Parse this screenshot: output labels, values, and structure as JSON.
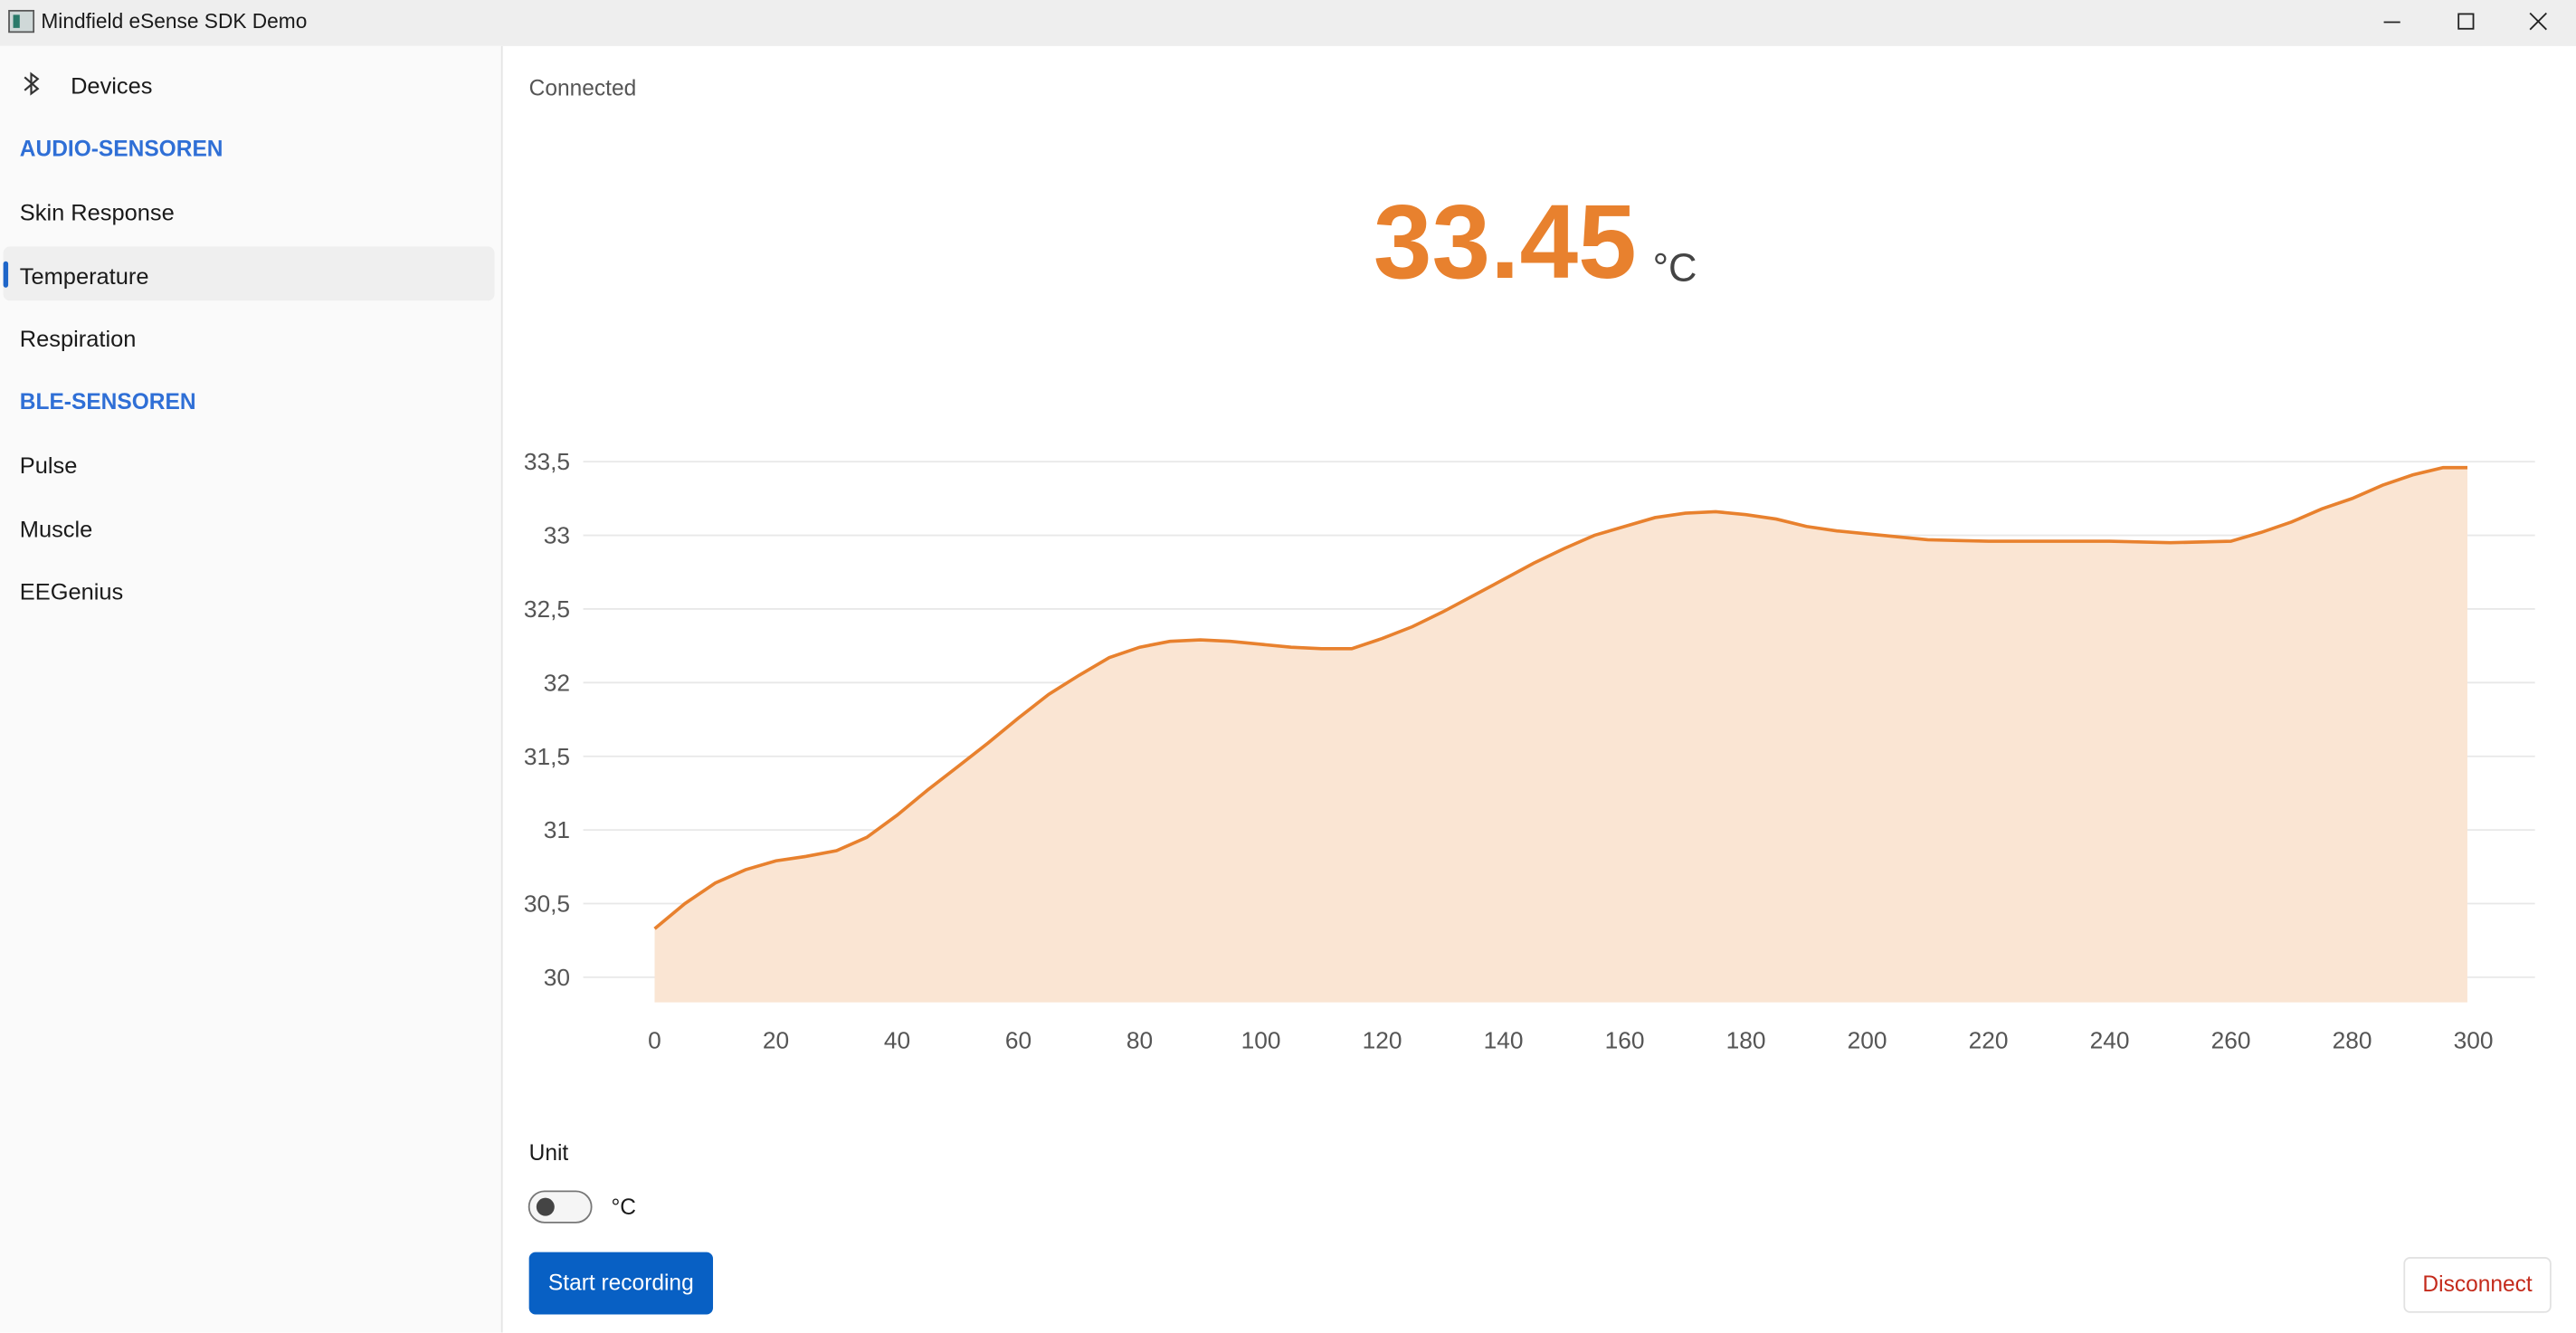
{
  "window": {
    "title": "Mindfield eSense SDK Demo"
  },
  "sidebar": {
    "devices": "Devices",
    "sections": [
      {
        "title": "AUDIO-SENSOREN",
        "items": [
          "Skin Response",
          "Temperature",
          "Respiration"
        ]
      },
      {
        "title": "BLE-SENSOREN",
        "items": [
          "Pulse",
          "Muscle",
          "EEGenius"
        ]
      }
    ]
  },
  "status": "Connected",
  "reading": {
    "value": "33.45",
    "unit": "°C"
  },
  "chart_data": {
    "type": "area",
    "color": "#e8812e",
    "fill": "#fae5d3",
    "series": [
      {
        "x": [
          0,
          5,
          10,
          15,
          20,
          25,
          30,
          35,
          40,
          45,
          50,
          55,
          60,
          65,
          70,
          75,
          80,
          85,
          90,
          95,
          100,
          105,
          110,
          115,
          120,
          125,
          130,
          135,
          140,
          145,
          150,
          155,
          160,
          165,
          170,
          175,
          180,
          185,
          190,
          195,
          200,
          210,
          220,
          230,
          240,
          250,
          260,
          265,
          270,
          275,
          280,
          285,
          290,
          295,
          299
        ],
        "values": [
          30.33,
          30.5,
          30.64,
          30.73,
          30.79,
          30.82,
          30.86,
          30.95,
          31.1,
          31.27,
          31.43,
          31.59,
          31.76,
          31.92,
          32.05,
          32.17,
          32.24,
          32.28,
          32.29,
          32.28,
          32.26,
          32.24,
          32.23,
          32.23,
          32.3,
          32.38,
          32.48,
          32.59,
          32.7,
          32.81,
          32.91,
          33.0,
          33.06,
          33.12,
          33.15,
          33.16,
          33.14,
          33.11,
          33.06,
          33.03,
          33.01,
          32.97,
          32.96,
          32.96,
          32.96,
          32.95,
          32.96,
          33.02,
          33.09,
          33.18,
          33.25,
          33.34,
          33.41,
          33.46,
          33.46
        ]
      }
    ],
    "xlim": [
      -5,
      305
    ],
    "xticks": [
      0,
      20,
      40,
      60,
      80,
      100,
      120,
      140,
      160,
      180,
      200,
      220,
      240,
      260,
      280,
      300
    ],
    "ylim": [
      29.83,
      33.6
    ],
    "yticks": [
      30,
      {
        "value": 30.5,
        "label": "30,5"
      },
      31,
      {
        "value": 31.5,
        "label": "31,5"
      },
      32,
      {
        "value": 32.5,
        "label": "32,5"
      },
      33,
      {
        "value": 33.5,
        "label": "33,5"
      }
    ],
    "grid": true
  },
  "controls": {
    "unit_label": "Unit",
    "toggle_label": "°C",
    "start": "Start recording",
    "disconnect": "Disconnect"
  }
}
